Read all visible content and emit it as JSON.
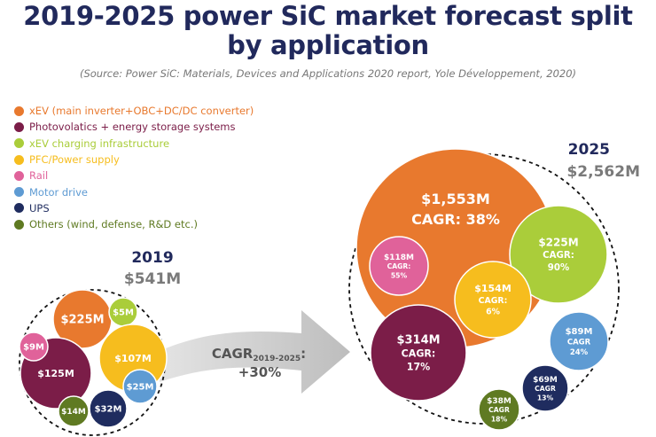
{
  "header": {
    "title_line1": "2019-2025 power SiC market forecast split",
    "title_line2": "by application",
    "subtitle": "(Source: Power SiC: Materials, Devices and Applications 2020 report, Yole Développement, 2020)"
  },
  "chart_data": {
    "type": "bubble",
    "title": "2019-2025 power SiC market forecast split by application",
    "unit": "$M",
    "categories": [
      {
        "name": "xEV (main inverter+OBC+DC/DC converter)",
        "color": "#e8792e"
      },
      {
        "name": "Photovolatics + energy storage systems",
        "color": "#7b1d48"
      },
      {
        "name": "xEV charging infrastructure",
        "color": "#aacd3a"
      },
      {
        "name": "PFC/Power supply",
        "color": "#f6bd1e"
      },
      {
        "name": "Rail",
        "color": "#e0629a"
      },
      {
        "name": "Motor drive",
        "color": "#5e9bd3"
      },
      {
        "name": "UPS",
        "color": "#1f2c5f"
      },
      {
        "name": "Others (wind, defense, R&D etc.)",
        "color": "#5f7a22"
      }
    ],
    "series": [
      {
        "year": "2019",
        "total": "$541M",
        "values": [
          {
            "category": "xEV (main inverter+OBC+DC/DC converter)",
            "label": "$225M"
          },
          {
            "category": "Photovolatics + energy storage systems",
            "label": "$125M"
          },
          {
            "category": "xEV charging infrastructure",
            "label": "$5M"
          },
          {
            "category": "PFC/Power supply",
            "label": "$107M"
          },
          {
            "category": "Rail",
            "label": "$9M"
          },
          {
            "category": "Motor drive",
            "label": "$25M"
          },
          {
            "category": "UPS",
            "label": "$32M"
          },
          {
            "category": "Others (wind, defense, R&D etc.)",
            "label": "$14M"
          }
        ]
      },
      {
        "year": "2025",
        "total": "$2,562M",
        "values": [
          {
            "category": "xEV (main inverter+OBC+DC/DC converter)",
            "label": "$1,553M",
            "cagr": "CAGR: 38%"
          },
          {
            "category": "Photovolatics + energy storage systems",
            "label": "$314M",
            "cagr_label": "CAGR:",
            "cagr_value": "17%"
          },
          {
            "category": "xEV charging infrastructure",
            "label": "$225M",
            "cagr_label": "CAGR:",
            "cagr_value": "90%"
          },
          {
            "category": "PFC/Power supply",
            "label": "$154M",
            "cagr_label": "CAGR:",
            "cagr_value": "6%"
          },
          {
            "category": "Rail",
            "label": "$118M",
            "cagr_label": "CAGR:",
            "cagr_value": "55%"
          },
          {
            "category": "Motor drive",
            "label": "$89M",
            "cagr_label": "CAGR",
            "cagr_value": "24%"
          },
          {
            "category": "UPS",
            "label": "$69M",
            "cagr_label": "CAGR",
            "cagr_value": "13%"
          },
          {
            "category": "Others (wind, defense, R&D etc.)",
            "label": "$38M",
            "cagr_label": "CAGR",
            "cagr_value": "18%"
          }
        ]
      }
    ],
    "overall_cagr": {
      "label": "CAGR",
      "period": "2019-2025",
      "suffix": ":",
      "value": "+30%"
    }
  }
}
